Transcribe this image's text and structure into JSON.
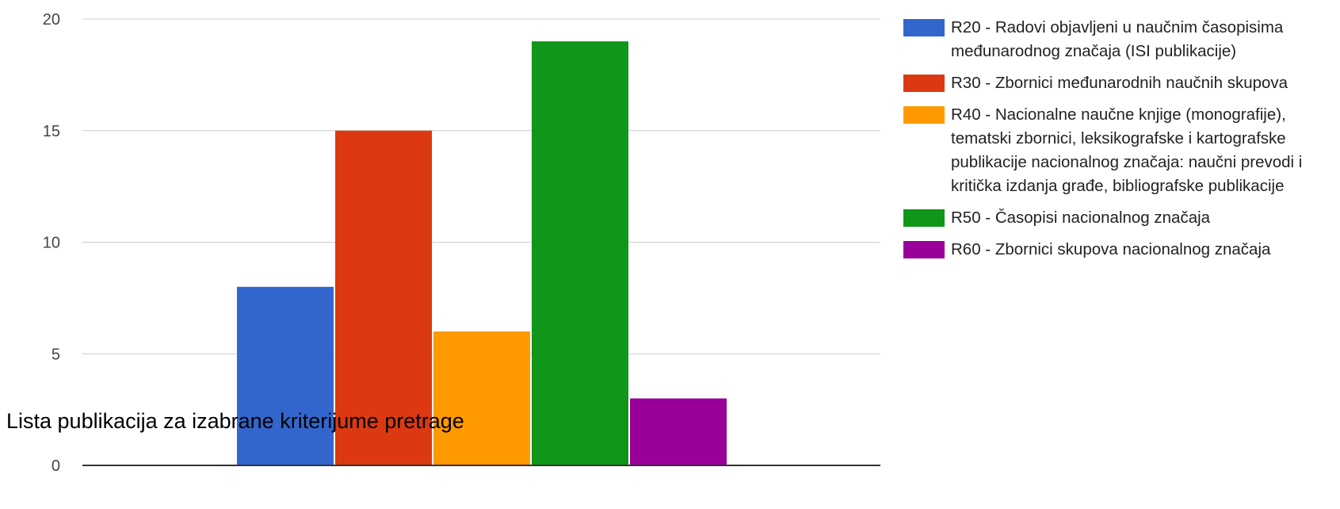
{
  "chart_data": {
    "type": "bar",
    "series": [
      {
        "name": "R20 - Radovi objavljeni u naučnim časopisima međunarodnog značaja (ISI publikacije)",
        "values": [
          8
        ],
        "color": "#3366cc"
      },
      {
        "name": "R30 - Zbornici međunarodnih naučnih skupova",
        "values": [
          15
        ],
        "color": "#dc3912"
      },
      {
        "name": "R40 - Nacionalne naučne knjige (monografije), tematski zbornici, leksikografske i kartografske publikacije nacionalnog značaja: naučni prevodi i kritička izdanja građe, bibliografske publikacije",
        "values": [
          6
        ],
        "color": "#ff9900"
      },
      {
        "name": "R50 - Časopisi nacionalnog značaja",
        "values": [
          19
        ],
        "color": "#109618"
      },
      {
        "name": "R60 - Zbornici skupova nacionalnog značaja",
        "values": [
          3
        ],
        "color": "#990099"
      }
    ],
    "ylim": [
      0,
      20
    ],
    "yticks": [
      "0",
      "5",
      "10",
      "15",
      "20"
    ],
    "grid": true,
    "legend_position": "right"
  },
  "overlay_text": "Lista publikacija za izabrane kriterijume pretrage"
}
